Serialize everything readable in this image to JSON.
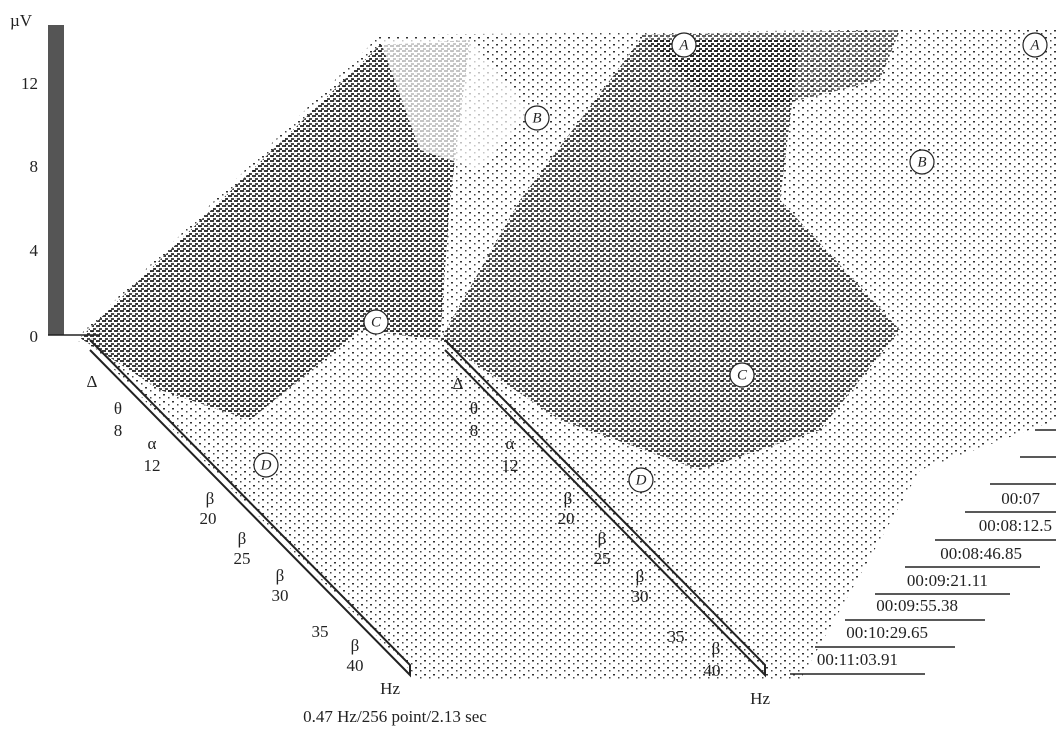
{
  "y_axis": {
    "unit": "µV",
    "ticks": [
      "12",
      "8",
      "4",
      "0"
    ]
  },
  "freq_axis_left": {
    "labels": [
      "Δ",
      "θ",
      "8",
      "α",
      "12",
      "β",
      "20",
      "β",
      "25",
      "β",
      "30",
      "35",
      "β",
      "40"
    ],
    "unit": "Hz"
  },
  "freq_axis_right": {
    "labels": [
      "Δ",
      "θ",
      "8",
      "α",
      "12",
      "β",
      "20",
      "β",
      "25",
      "β",
      "30",
      "35",
      "β",
      "40"
    ],
    "unit": "Hz"
  },
  "times": [
    "00:07",
    "00:08:12.5",
    "00:08:46.85",
    "00:09:21.11",
    "00:09:55.38",
    "00:10:29.65",
    "00:11:03.91"
  ],
  "annotations": [
    "A",
    "A",
    "B",
    "B",
    "C",
    "C",
    "D",
    "D"
  ],
  "caption": "0.47 Hz/256 point/2.13 sec"
}
